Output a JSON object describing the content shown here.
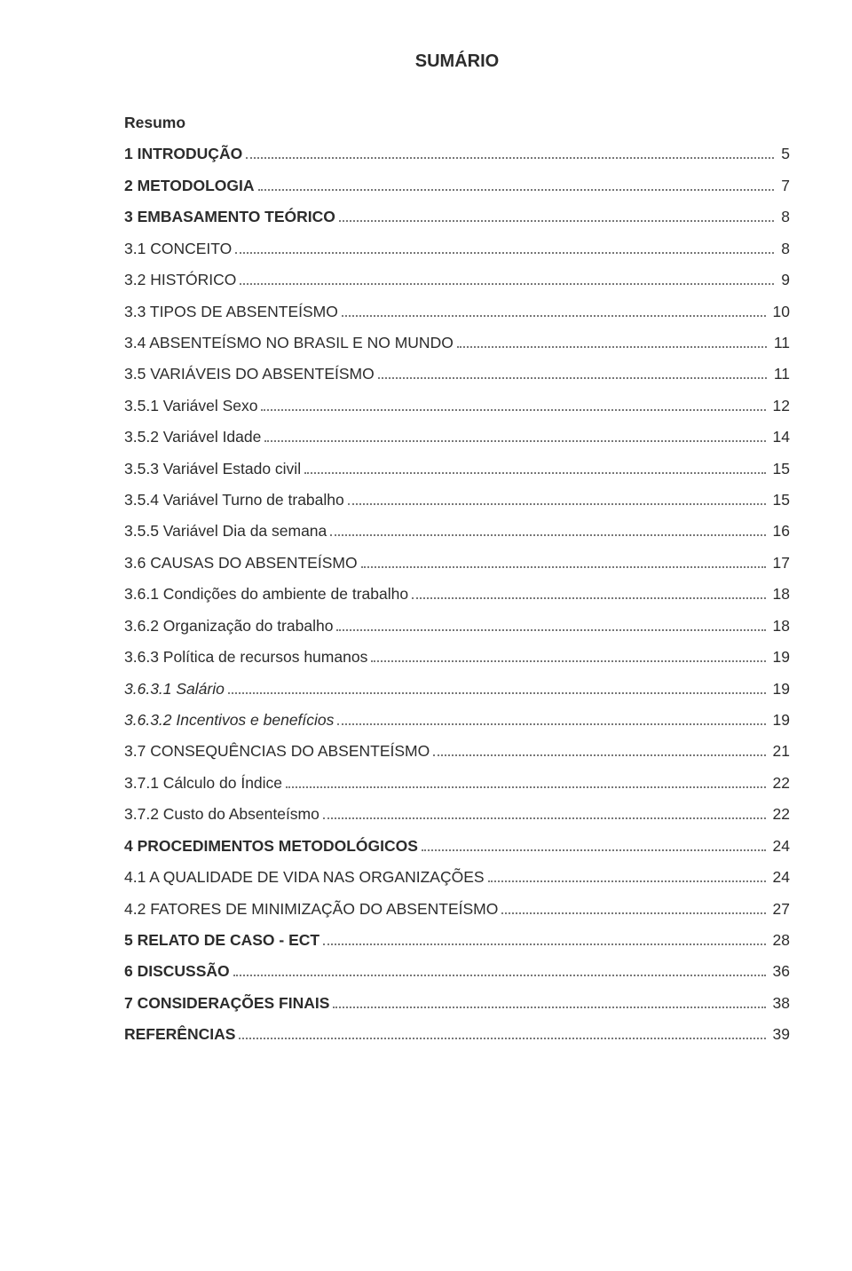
{
  "title": "SUMÁRIO",
  "entries": [
    {
      "label": "Resumo",
      "page": "",
      "bold": true,
      "italic": false,
      "nopage": true
    },
    {
      "label": "1 INTRODUÇÃO",
      "page": "5",
      "bold": true,
      "italic": false,
      "nopage": false
    },
    {
      "label": "2 METODOLOGIA",
      "page": "7",
      "bold": true,
      "italic": false,
      "nopage": false
    },
    {
      "label": "3 EMBASAMENTO TEÓRICO",
      "page": "8",
      "bold": true,
      "italic": false,
      "nopage": false
    },
    {
      "label": "3.1 CONCEITO",
      "page": "8",
      "bold": false,
      "italic": false,
      "nopage": false
    },
    {
      "label": "3.2 HISTÓRICO",
      "page": "9",
      "bold": false,
      "italic": false,
      "nopage": false
    },
    {
      "label": "3.3 TIPOS DE ABSENTEÍSMO",
      "page": "10",
      "bold": false,
      "italic": false,
      "nopage": false
    },
    {
      "label": "3.4 ABSENTEÍSMO NO BRASIL E NO MUNDO",
      "page": "11",
      "bold": false,
      "italic": false,
      "nopage": false
    },
    {
      "label": "3.5 VARIÁVEIS DO ABSENTEÍSMO",
      "page": "11",
      "bold": false,
      "italic": false,
      "nopage": false
    },
    {
      "label": "3.5.1 Variável Sexo",
      "page": "12",
      "bold": false,
      "italic": false,
      "nopage": false
    },
    {
      "label": "3.5.2 Variável Idade",
      "page": "14",
      "bold": false,
      "italic": false,
      "nopage": false
    },
    {
      "label": "3.5.3 Variável Estado civil",
      "page": "15",
      "bold": false,
      "italic": false,
      "nopage": false
    },
    {
      "label": "3.5.4 Variável Turno de trabalho",
      "page": "15",
      "bold": false,
      "italic": false,
      "nopage": false
    },
    {
      "label": "3.5.5 Variável Dia da semana",
      "page": "16",
      "bold": false,
      "italic": false,
      "nopage": false
    },
    {
      "label": "3.6 CAUSAS DO ABSENTEÍSMO",
      "page": "17",
      "bold": false,
      "italic": false,
      "nopage": false
    },
    {
      "label": "3.6.1 Condições do ambiente de trabalho",
      "page": "18",
      "bold": false,
      "italic": false,
      "nopage": false
    },
    {
      "label": "3.6.2 Organização do trabalho",
      "page": "18",
      "bold": false,
      "italic": false,
      "nopage": false
    },
    {
      "label": "3.6.3 Política de recursos humanos",
      "page": "19",
      "bold": false,
      "italic": false,
      "nopage": false
    },
    {
      "label": "3.6.3.1 Salário",
      "page": "19",
      "bold": false,
      "italic": true,
      "nopage": false
    },
    {
      "label": "3.6.3.2 Incentivos e benefícios",
      "page": "19",
      "bold": false,
      "italic": true,
      "nopage": false
    },
    {
      "label": "3.7 CONSEQUÊNCIAS DO ABSENTEÍSMO",
      "page": "21",
      "bold": false,
      "italic": false,
      "nopage": false
    },
    {
      "label": "3.7.1 Cálculo do Índice",
      "page": "22",
      "bold": false,
      "italic": false,
      "nopage": false
    },
    {
      "label": "3.7.2 Custo do Absenteísmo",
      "page": "22",
      "bold": false,
      "italic": false,
      "nopage": false
    },
    {
      "label": "4 PROCEDIMENTOS METODOLÓGICOS",
      "page": "24",
      "bold": true,
      "italic": false,
      "nopage": false
    },
    {
      "label": "4.1 A QUALIDADE DE VIDA NAS ORGANIZAÇÕES",
      "page": "24",
      "bold": false,
      "italic": false,
      "nopage": false
    },
    {
      "label": "4.2 FATORES DE MINIMIZAÇÃO DO ABSENTEÍSMO",
      "page": "27",
      "bold": false,
      "italic": false,
      "nopage": false
    },
    {
      "label": "5 RELATO DE CASO - ECT",
      "page": "28",
      "bold": true,
      "italic": false,
      "nopage": false
    },
    {
      "label": "6 DISCUSSÃO",
      "page": "36",
      "bold": true,
      "italic": false,
      "nopage": false
    },
    {
      "label": "7 CONSIDERAÇÕES FINAIS",
      "page": "38",
      "bold": true,
      "italic": false,
      "nopage": false
    },
    {
      "label": "REFERÊNCIAS",
      "page": "39",
      "bold": true,
      "italic": false,
      "nopage": false
    }
  ]
}
